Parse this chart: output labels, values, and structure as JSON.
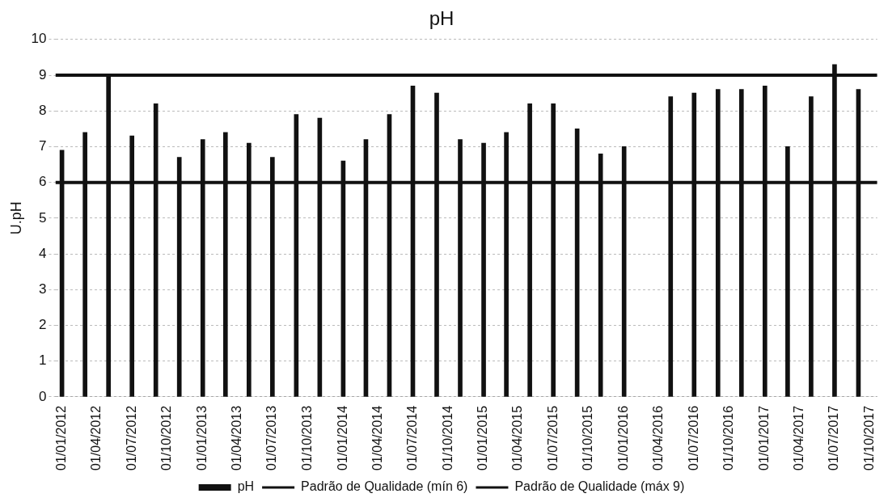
{
  "chart_data": {
    "type": "bar",
    "title": "pH",
    "ylabel": "U.pH",
    "x": [
      "2012-01",
      "2012-03",
      "2012-05",
      "2012-07",
      "2012-09",
      "2012-11",
      "2013-01",
      "2013-03",
      "2013-05",
      "2013-07",
      "2013-09",
      "2013-11",
      "2014-01",
      "2014-03",
      "2014-05",
      "2014-07",
      "2014-09",
      "2014-11",
      "2015-01",
      "2015-03",
      "2015-05",
      "2015-07",
      "2015-09",
      "2015-11",
      "2016-01",
      "2016-03",
      "2016-05",
      "2016-07",
      "2016-09",
      "2016-11",
      "2017-01",
      "2017-03",
      "2017-05",
      "2017-07",
      "2017-09"
    ],
    "series": [
      {
        "name": "pH",
        "color": "#111111",
        "values": [
          6.9,
          7.4,
          9.0,
          7.3,
          8.2,
          6.7,
          7.2,
          7.4,
          7.1,
          6.7,
          7.9,
          7.8,
          6.6,
          7.2,
          7.9,
          8.7,
          8.5,
          7.2,
          7.1,
          7.4,
          8.2,
          8.2,
          7.5,
          6.8,
          7.0,
          null,
          8.4,
          8.5,
          8.6,
          8.6,
          8.7,
          7.0,
          8.4,
          9.3,
          8.6
        ]
      },
      {
        "type": "line",
        "name": "Padrão de Qualidade (mín 6)",
        "color": "#111111",
        "x": [
          "2011-12-15",
          "2017-10-20"
        ],
        "values": [
          6,
          6
        ]
      },
      {
        "type": "line",
        "name": "Padrão de Qualidade (máx 9)",
        "color": "#111111",
        "x": [
          "2011-12-15",
          "2017-10-20"
        ],
        "values": [
          9,
          9
        ]
      }
    ],
    "xlim": [
      "2011-12-15",
      "2017-10-20"
    ],
    "xticks": [
      {
        "value": "2012-01-01",
        "label": "01/01/2012"
      },
      {
        "value": "2012-04-01",
        "label": "01/04/2012"
      },
      {
        "value": "2012-07-01",
        "label": "01/07/2012"
      },
      {
        "value": "2012-10-01",
        "label": "01/10/2012"
      },
      {
        "value": "2013-01-01",
        "label": "01/01/2013"
      },
      {
        "value": "2013-04-01",
        "label": "01/04/2013"
      },
      {
        "value": "2013-07-01",
        "label": "01/07/2013"
      },
      {
        "value": "2013-10-01",
        "label": "01/10/2013"
      },
      {
        "value": "2014-01-01",
        "label": "01/01/2014"
      },
      {
        "value": "2014-04-01",
        "label": "01/04/2014"
      },
      {
        "value": "2014-07-01",
        "label": "01/07/2014"
      },
      {
        "value": "2014-10-01",
        "label": "01/10/2014"
      },
      {
        "value": "2015-01-01",
        "label": "01/01/2015"
      },
      {
        "value": "2015-04-01",
        "label": "01/04/2015"
      },
      {
        "value": "2015-07-01",
        "label": "01/07/2015"
      },
      {
        "value": "2015-10-01",
        "label": "01/10/2015"
      },
      {
        "value": "2016-01-01",
        "label": "01/01/2016"
      },
      {
        "value": "2016-04-01",
        "label": "01/04/2016"
      },
      {
        "value": "2016-07-01",
        "label": "01/07/2016"
      },
      {
        "value": "2016-10-01",
        "label": "01/10/2016"
      },
      {
        "value": "2017-01-01",
        "label": "01/01/2017"
      },
      {
        "value": "2017-04-01",
        "label": "01/04/2017"
      },
      {
        "value": "2017-07-01",
        "label": "01/07/2017"
      },
      {
        "value": "2017-10-01",
        "label": "01/10/2017"
      }
    ],
    "ylim": [
      0,
      10
    ],
    "yticks": [
      0,
      1,
      2,
      3,
      4,
      5,
      6,
      7,
      8,
      9,
      10
    ],
    "grid": "y",
    "legend": "bottom"
  }
}
